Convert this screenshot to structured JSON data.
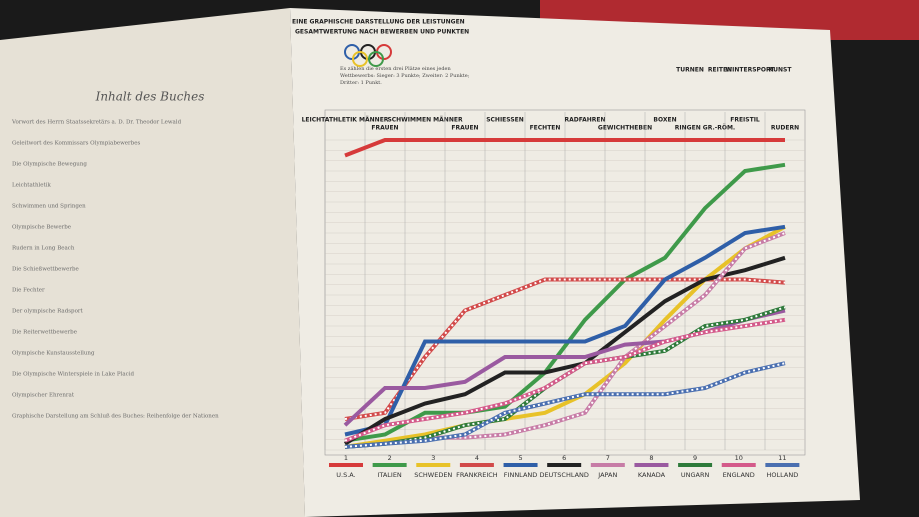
{
  "left_page": {
    "title": "Inhalt des Buches",
    "entries": [
      "Vorwort des Herrn Staatssekretärs a. D. Dr. Theodor Lewald",
      "Geleitwort des Kommissars Olympiabewerbes",
      "Die Olympische Bewegung",
      "Leichtathletik",
      "Schwimmen und Springen",
      "Olympische Bewerbe",
      "Rudern in Long Beach",
      "Die Schießwettbewerbe",
      "Die Fechter",
      "Der olympische Radsport",
      "Die Reiterwettbewerbe",
      "Olympische Kunstausstellung",
      "Die Olympische Winterspiele in Lake Placid",
      "Olympischer Ehrenrat",
      "Graphische Darstellung am Schluß des Buches: Reihenfolge der Nationen"
    ]
  },
  "chart_data": {
    "type": "line",
    "title": "EINE GRAPHISCHE DARSTELLUNG DER LEISTUNGEN",
    "subtitle": "GESAMTWERTUNG NACH BEWERBEN UND PUNKTEN",
    "annotation": "Es zählen die ersten drei Plätze eines jeden Wettbewerbs: Sieger: 3 Punkte; Zweiter: 2 Punkte; Dritter: 1 Punkt.",
    "extra_headers": [
      "TURNEN",
      "REITEN",
      "WINTERSPORT",
      "KUNST"
    ],
    "categories": [
      "LEICHTATHLETIK MÄNNER",
      "FRAUEN",
      "SCHWIMMEN MÄNNER",
      "FRAUEN",
      "SCHIESSEN",
      "FECHTEN",
      "RADFAHREN",
      "GEWICHTHEBEN",
      "BOXEN",
      "RINGEN GR.-RÖM.",
      "FREISTIL",
      "RUDERN"
    ],
    "ylim": [
      0,
      100
    ],
    "series": [
      {
        "name": "U.S.A.",
        "rank": "1",
        "color": "#d63a3a",
        "dash": false,
        "values": [
          95,
          100,
          100,
          100,
          100,
          100,
          100,
          100,
          100,
          100,
          100,
          100
        ]
      },
      {
        "name": "ITALIEN",
        "rank": "2",
        "color": "#3f9a4a",
        "dash": false,
        "values": [
          3,
          5,
          12,
          12,
          14,
          25,
          42,
          55,
          62,
          78,
          90,
          92
        ]
      },
      {
        "name": "SCHWEDEN",
        "rank": "3",
        "color": "#e8c228",
        "dash": false,
        "values": [
          1,
          3,
          5,
          8,
          10,
          12,
          18,
          28,
          42,
          55,
          65,
          72
        ]
      },
      {
        "name": "FRANKREICH",
        "rank": "4",
        "color": "#d24a4a",
        "dash": true,
        "values": [
          10,
          12,
          30,
          45,
          50,
          55,
          55,
          55,
          55,
          55,
          55,
          54
        ]
      },
      {
        "name": "FINNLAND",
        "rank": "5",
        "color": "#2f5fa8",
        "dash": false,
        "values": [
          5,
          8,
          35,
          35,
          35,
          35,
          35,
          40,
          55,
          62,
          70,
          72
        ]
      },
      {
        "name": "DEUTSCHLAND",
        "rank": "6",
        "color": "#222222",
        "dash": false,
        "values": [
          2,
          10,
          15,
          18,
          25,
          25,
          28,
          38,
          48,
          55,
          58,
          62
        ]
      },
      {
        "name": "JAPAN",
        "rank": "7",
        "color": "#c77ca6",
        "dash": true,
        "values": [
          1,
          2,
          4,
          4,
          5,
          8,
          12,
          30,
          40,
          50,
          65,
          70
        ]
      },
      {
        "name": "KANADA",
        "rank": "8",
        "color": "#9a5aa0",
        "dash": false,
        "values": [
          8,
          20,
          20,
          22,
          30,
          30,
          30,
          34,
          35,
          38,
          42,
          45
        ]
      },
      {
        "name": "UNGARN",
        "rank": "9",
        "color": "#2e7a3a",
        "dash": true,
        "values": [
          1,
          2,
          4,
          8,
          10,
          20,
          28,
          30,
          32,
          40,
          42,
          46
        ]
      },
      {
        "name": "ENGLAND",
        "rank": "10",
        "color": "#d45a8a",
        "dash": true,
        "values": [
          3,
          8,
          10,
          12,
          15,
          20,
          28,
          30,
          35,
          38,
          40,
          42
        ]
      },
      {
        "name": "HOLLAND",
        "rank": "11",
        "color": "#4a6fb0",
        "dash": true,
        "values": [
          1,
          2,
          3,
          5,
          12,
          15,
          18,
          18,
          18,
          20,
          25,
          28
        ]
      }
    ]
  }
}
